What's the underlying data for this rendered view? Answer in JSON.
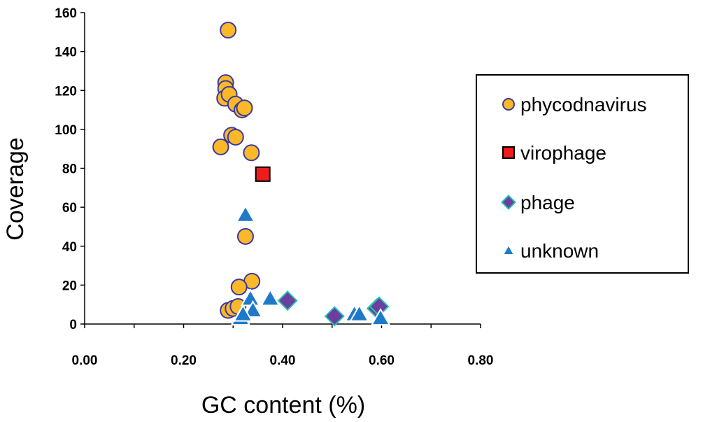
{
  "chart_data": {
    "type": "scatter",
    "xlabel": "GC content (%)",
    "ylabel": "Coverage",
    "xlim": [
      0.0,
      0.8
    ],
    "ylim": [
      0,
      160
    ],
    "xticks": [
      "0.00",
      "0.20",
      "0.40",
      "0.60",
      "0.80"
    ],
    "yticks": [
      "0",
      "20",
      "40",
      "60",
      "80",
      "100",
      "120",
      "140",
      "160"
    ],
    "grid": false,
    "legend_position": "right",
    "series": [
      {
        "name": "phycodnavirus",
        "marker": "circle",
        "fill": "#FBB829",
        "stroke": "#3B3AA0",
        "points": [
          [
            0.29,
            151
          ],
          [
            0.285,
            124
          ],
          [
            0.285,
            121
          ],
          [
            0.283,
            116
          ],
          [
            0.292,
            118
          ],
          [
            0.305,
            113
          ],
          [
            0.318,
            110
          ],
          [
            0.323,
            111
          ],
          [
            0.297,
            97
          ],
          [
            0.305,
            96
          ],
          [
            0.275,
            91
          ],
          [
            0.337,
            88
          ],
          [
            0.325,
            45
          ],
          [
            0.338,
            22
          ],
          [
            0.312,
            19
          ],
          [
            0.29,
            7
          ],
          [
            0.3,
            8
          ],
          [
            0.31,
            9
          ]
        ]
      },
      {
        "name": "virophage",
        "marker": "square",
        "fill": "#EE1C1C",
        "stroke": "#000000",
        "points": [
          [
            0.36,
            77
          ]
        ]
      },
      {
        "name": "phage",
        "marker": "diamond",
        "fill": "#6A3FA0",
        "stroke": "#2BC4B0",
        "points": [
          [
            0.41,
            12
          ],
          [
            0.505,
            4
          ],
          [
            0.59,
            8
          ],
          [
            0.595,
            9
          ]
        ]
      },
      {
        "name": "unknown",
        "marker": "triangle",
        "fill": "#1E7AC8",
        "stroke": "#ffffff",
        "points": [
          [
            0.325,
            56
          ],
          [
            0.335,
            13
          ],
          [
            0.34,
            7
          ],
          [
            0.375,
            13
          ],
          [
            0.315,
            3
          ],
          [
            0.32,
            5
          ],
          [
            0.545,
            5
          ],
          [
            0.555,
            5
          ],
          [
            0.598,
            3
          ]
        ]
      }
    ]
  }
}
